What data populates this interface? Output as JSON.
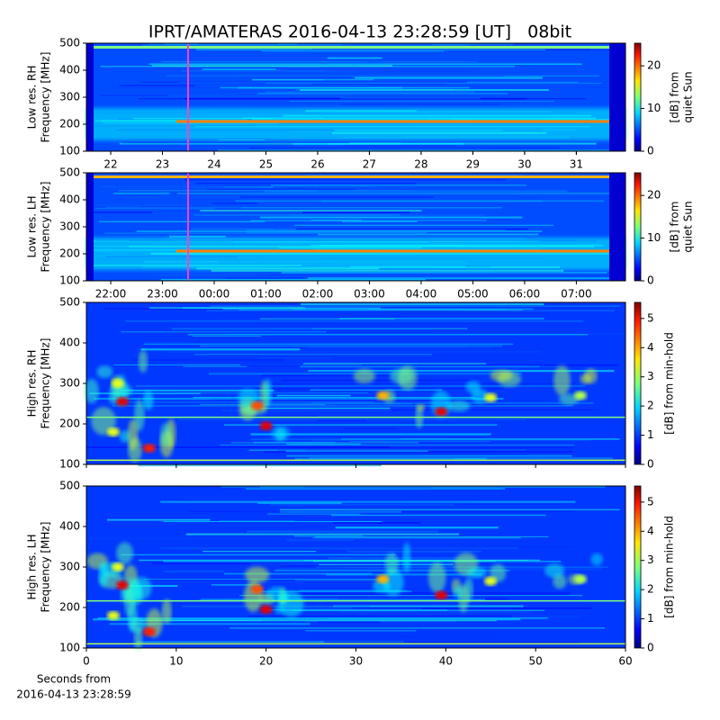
{
  "chart_data": [
    {
      "type": "spectrogram",
      "title": "IPRT/AMATERAS 2016-04-13 23:28:59 [UT]   08bit",
      "ylabel": [
        "Low res. RH",
        "Frequency [MHz]"
      ],
      "ylim": [
        100,
        500
      ],
      "yticks": [
        100,
        200,
        300,
        400,
        500
      ],
      "xlim": [
        21.53,
        31.95
      ],
      "xticks": [
        22,
        23,
        24,
        25,
        26,
        27,
        28,
        29,
        30,
        31
      ],
      "colormap": "jet",
      "cbar_label": [
        "[dB] from",
        "quiet Sun"
      ],
      "clim": [
        0,
        25.3
      ],
      "cticks": [
        0,
        10,
        20
      ]
    },
    {
      "type": "spectrogram",
      "ylabel": [
        "Low res. LH",
        "Frequency [MHz]"
      ],
      "ylim": [
        100,
        500
      ],
      "yticks": [
        100,
        200,
        300,
        400,
        500
      ],
      "xlim": [
        21.53,
        31.95
      ],
      "xticks": [
        {
          "value": 22,
          "label": "22:00"
        },
        {
          "value": 23,
          "label": "23:00"
        },
        {
          "value": 24,
          "label": "00:00"
        },
        {
          "value": 25,
          "label": "01:00"
        },
        {
          "value": 26,
          "label": "02:00"
        },
        {
          "value": 27,
          "label": "03:00"
        },
        {
          "value": 28,
          "label": "04:00"
        },
        {
          "value": 29,
          "label": "05:00"
        },
        {
          "value": 30,
          "label": "06:00"
        },
        {
          "value": 31,
          "label": "07:00"
        }
      ],
      "colormap": "jet",
      "cbar_label": [
        "[dB] from",
        "quiet Sun"
      ],
      "clim": [
        0,
        25.3
      ],
      "cticks": [
        0,
        10,
        20
      ]
    },
    {
      "type": "spectrogram",
      "ylabel": [
        "High res. RH",
        "Frequency [MHz]"
      ],
      "ylim": [
        100,
        500
      ],
      "yticks": [
        100,
        200,
        300,
        400,
        500
      ],
      "xlim": [
        0,
        60
      ],
      "colormap": "jet",
      "cbar_label": [
        "[dB] from min-hold"
      ],
      "clim": [
        0,
        5.55
      ],
      "cticks": [
        0,
        1,
        2,
        3,
        4,
        5
      ]
    },
    {
      "type": "spectrogram",
      "ylabel": [
        "High res. LH",
        "Frequency [MHz]"
      ],
      "ylim": [
        100,
        500
      ],
      "yticks": [
        100,
        200,
        300,
        400,
        500
      ],
      "xlim": [
        0,
        60
      ],
      "xticks": [
        0,
        10,
        20,
        30,
        40,
        50,
        60
      ],
      "xlabel": [
        "Seconds from",
        "2016-04-13 23:28:59"
      ],
      "colormap": "jet",
      "cbar_label": [
        "[dB] from min-hold"
      ],
      "clim": [
        0,
        5.55
      ],
      "cticks": [
        0,
        1,
        2,
        3,
        4,
        5
      ]
    }
  ]
}
